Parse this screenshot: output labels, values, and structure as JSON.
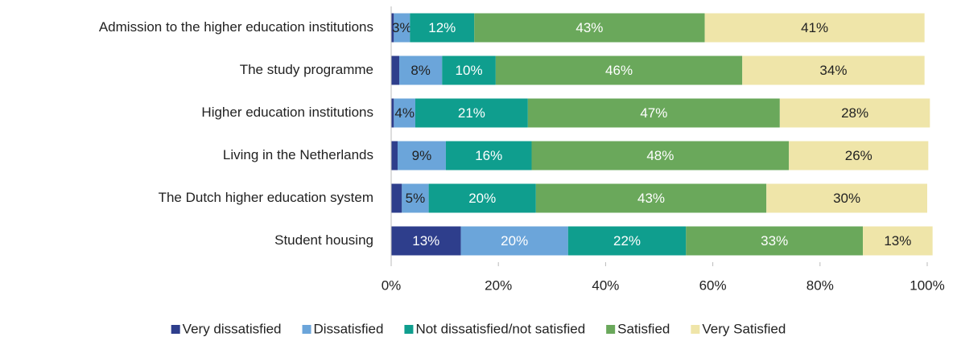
{
  "chart_data": {
    "type": "stacked_bar_horizontal",
    "categories": [
      "Admission to the higher education institutions",
      "The study programme",
      "Higher education institutions",
      "Living in the Netherlands",
      "The Dutch higher education system",
      "Student housing"
    ],
    "series": [
      {
        "name": "Very dissatisfied",
        "color": "#2e3e8c",
        "values": [
          0.5,
          1.5,
          0.5,
          1.2,
          2,
          13
        ],
        "value_labels": [
          null,
          null,
          null,
          null,
          null,
          "13%"
        ]
      },
      {
        "name": "Dissatisfied",
        "color": "#6ba5da",
        "values": [
          3,
          8,
          4,
          9,
          5,
          20
        ],
        "value_labels": [
          "3%",
          "8%",
          "4%",
          "9%",
          "5%",
          "20%"
        ]
      },
      {
        "name": "Not dissatisfied/not satisfied",
        "color": "#0f9e8e",
        "values": [
          12,
          10,
          21,
          16,
          20,
          22
        ],
        "value_labels": [
          "12%",
          "10%",
          "21%",
          "16%",
          "20%",
          "22%"
        ]
      },
      {
        "name": "Satisfied",
        "color": "#6aa85b",
        "values": [
          43,
          46,
          47,
          48,
          43,
          33
        ],
        "value_labels": [
          "43%",
          "46%",
          "47%",
          "48%",
          "43%",
          "33%"
        ]
      },
      {
        "name": "Very Satisfied",
        "color": "#efe5a9",
        "values": [
          41,
          34,
          28,
          26,
          30,
          13
        ],
        "value_labels": [
          "41%",
          "34%",
          "28%",
          "26%",
          "30%",
          "13%"
        ]
      }
    ],
    "xlim": [
      0,
      100
    ],
    "xticks": [
      {
        "value": 0,
        "label": "0%"
      },
      {
        "value": 20,
        "label": "20%"
      },
      {
        "value": 40,
        "label": "40%"
      },
      {
        "value": 60,
        "label": "60%"
      },
      {
        "value": 80,
        "label": "80%"
      },
      {
        "value": 100,
        "label": "100%"
      }
    ],
    "legend": "bottom"
  }
}
